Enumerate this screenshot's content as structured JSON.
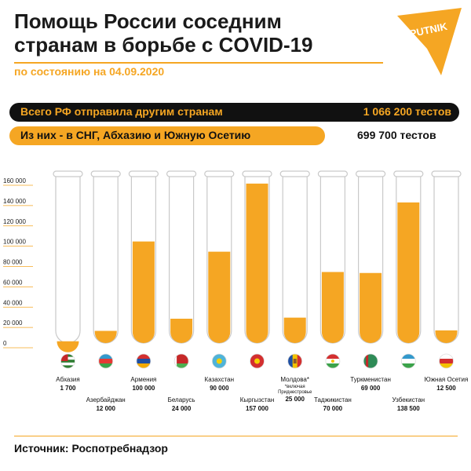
{
  "header": {
    "title_line1": "Помощь России соседним",
    "title_line2": "странам в борьбе с COVID-19",
    "subtitle": "по состоянию на 04.09.2020",
    "logo_text": "SPUTNIK"
  },
  "summary": {
    "total_label": "Всего РФ отправила другим странам",
    "total_value": "1 066 200 тестов",
    "cis_label": "Из них - в СНГ, Абхазию и Южную Осетию",
    "cis_value": "699 700 тестов"
  },
  "chart_data": {
    "type": "bar",
    "ylim": [
      0,
      160000
    ],
    "yticks": [
      0,
      20000,
      40000,
      60000,
      80000,
      100000,
      120000,
      140000,
      160000
    ],
    "ytick_labels": [
      "0",
      "20 000",
      "40 000",
      "60 000",
      "80 000",
      "100 000",
      "120 000",
      "140 000",
      "160 000"
    ],
    "categories": [
      "Абхазия",
      "Азербайджан",
      "Армения",
      "Беларусь",
      "Казахстан",
      "Кыргызстан",
      "Молдова*",
      "Таджикистан",
      "Туркменистан",
      "Узбекистан",
      "Южная Осетия"
    ],
    "category_notes": [
      "",
      "",
      "",
      "",
      "",
      "",
      "*включая Приднестровье",
      "",
      "",
      "",
      ""
    ],
    "value_labels": [
      "1 700",
      "12 000",
      "100 000",
      "24 000",
      "90 000",
      "157 000",
      "25 000",
      "70 000",
      "69 000",
      "138 500",
      "12 500"
    ],
    "values": [
      1700,
      12000,
      100000,
      24000,
      90000,
      157000,
      25000,
      70000,
      69000,
      138500,
      12500
    ],
    "bar_color": "#f5a623",
    "flags": [
      "flag-abkhazia-icon",
      "flag-azerbaijan-icon",
      "flag-armenia-icon",
      "flag-belarus-icon",
      "flag-kazakhstan-icon",
      "flag-kyrgyzstan-icon",
      "flag-moldova-icon",
      "flag-tajikistan-icon",
      "flag-turkmenistan-icon",
      "flag-uzbekistan-icon",
      "flag-south-ossetia-icon"
    ]
  },
  "footer": {
    "source": "Источник: Роспотребнадзор"
  }
}
